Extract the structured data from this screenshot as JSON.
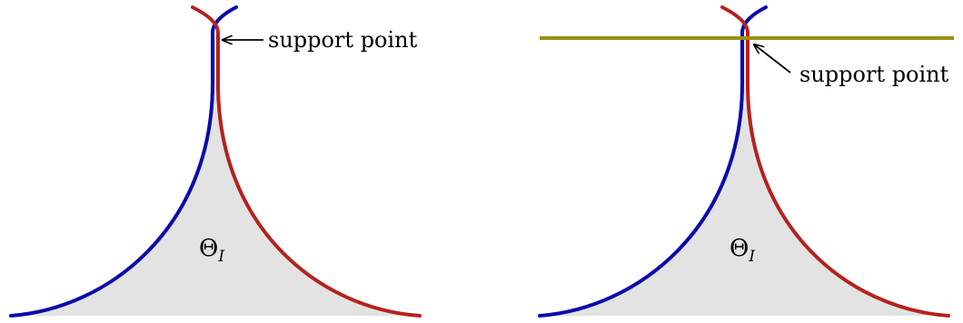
{
  "panels": [
    {
      "region_label": "Θ",
      "region_subscript": "I",
      "annotation": "support point",
      "has_support_line": false
    },
    {
      "region_label": "Θ",
      "region_subscript": "I",
      "annotation": "support point",
      "has_support_line": true
    }
  ],
  "colors": {
    "blue_curve": "#0b0ba8",
    "red_curve": "#b5221e",
    "region_fill": "#e3e3e3",
    "support_line": "#9b8f12",
    "arrow": "#000000"
  }
}
